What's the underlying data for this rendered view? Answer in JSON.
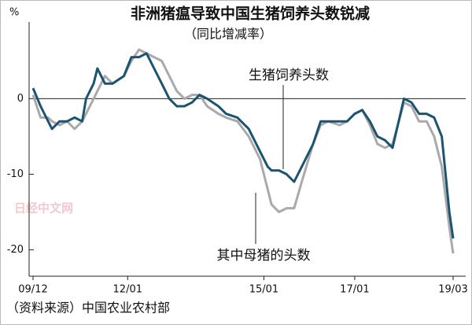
{
  "chart_data": {
    "type": "line",
    "title": "非洲猪瘟导致中国生猪饲养头数锐减",
    "subtitle": "（同比增减率）",
    "y_unit": "%",
    "source": "（资料来源）中国农业农村部",
    "watermark": "日经中文网",
    "x": [
      "09/12",
      "10/02",
      "10/04",
      "10/05",
      "10/07",
      "10/09",
      "10/11",
      "11/01",
      "11/02",
      "11/04",
      "11/05",
      "11/07",
      "11/09",
      "11/12",
      "12/02",
      "12/04",
      "12/06",
      "12/08",
      "12/10",
      "12/12",
      "13/02",
      "13/04",
      "13/06",
      "13/08",
      "13/10",
      "14/01",
      "14/03",
      "14/06",
      "14/09",
      "14/12",
      "15/02",
      "15/03",
      "15/05",
      "15/07",
      "15/09",
      "15/11",
      "16/02",
      "16/04",
      "16/06",
      "16/09",
      "16/11",
      "17/01",
      "17/03",
      "17/05",
      "17/07",
      "17/09",
      "17/11",
      "18/02",
      "18/04",
      "18/06",
      "18/08",
      "18/10",
      "18/12",
      "19/02",
      "19/03"
    ],
    "series": [
      {
        "name": "其中母猪的头数",
        "color": "#a9a9ae",
        "values": [
          0.5,
          -2.5,
          -2.5,
          -3,
          -3.5,
          -3,
          -4,
          -3,
          -2,
          0,
          1,
          3,
          2,
          3,
          5,
          6.5,
          6,
          5.5,
          5,
          3,
          1,
          0,
          0.5,
          0.5,
          -1,
          -2,
          -2.5,
          -3,
          -5,
          -8,
          -12,
          -14,
          -15,
          -14.5,
          -14.5,
          -11,
          -6,
          -3.5,
          -3,
          -3.5,
          -3,
          -2,
          -1.5,
          -3.5,
          -6,
          -6.5,
          -6,
          -0.5,
          -1,
          -3,
          -3,
          -5,
          -9,
          -17,
          -20.5
        ]
      },
      {
        "name": "生猪饲养头数",
        "color": "#1c5470",
        "values": [
          1.4,
          -1,
          -3,
          -4,
          -3,
          -3,
          -2.5,
          -3,
          0,
          2,
          4,
          2,
          2,
          3,
          5.5,
          5.5,
          6,
          4,
          2,
          0,
          -1,
          -1,
          -0.5,
          0.5,
          0,
          -1,
          -2,
          -2.5,
          -4,
          -7,
          -9,
          -9.5,
          -9.5,
          -10,
          -11,
          -9,
          -6,
          -3,
          -3,
          -3,
          -3,
          -2,
          -1.5,
          -3,
          -5,
          -5.5,
          -6.5,
          0,
          -0.5,
          -2,
          -2,
          -2.5,
          -5,
          -15,
          -18.5
        ]
      }
    ],
    "xlim": [
      "09/12",
      "19/03"
    ],
    "xticks": [
      "09/12",
      "12/01",
      "15/01",
      "17/01",
      "19/03"
    ],
    "ylim": [
      -23.5,
      9
    ],
    "yticks": [
      0,
      -10,
      -20
    ]
  }
}
